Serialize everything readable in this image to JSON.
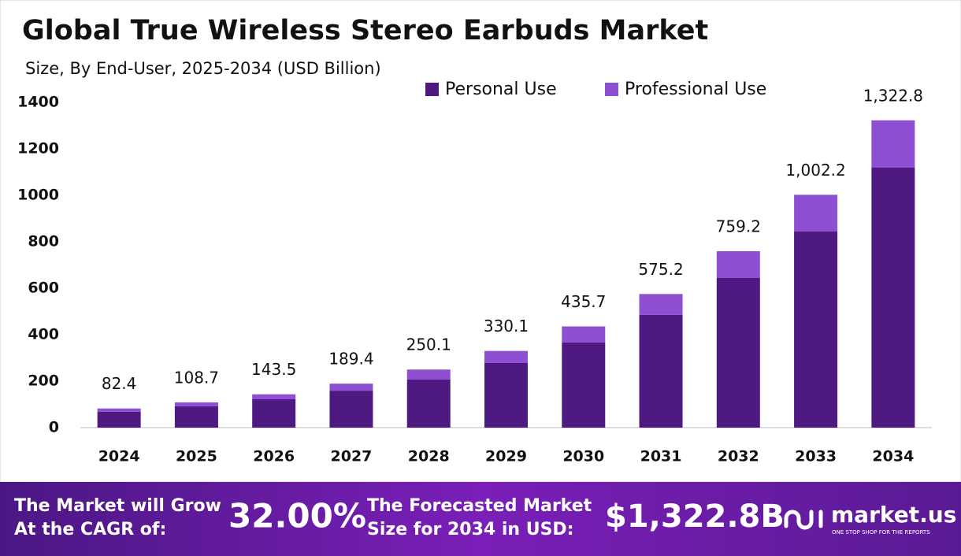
{
  "chart_data": {
    "type": "stacked-bar",
    "title": "Global True Wireless Stereo Earbuds Market",
    "subtitle": "Size, By End-User, 2025-2034 (USD Billion)",
    "categories": [
      "2024",
      "2025",
      "2026",
      "2027",
      "2028",
      "2029",
      "2030",
      "2031",
      "2032",
      "2033",
      "2034"
    ],
    "series": [
      {
        "name": "Personal Use",
        "color": "#4e1a82",
        "values": [
          68,
          92,
          122,
          159,
          207,
          278,
          366,
          485,
          644,
          844,
          1120
        ]
      },
      {
        "name": "Professional Use",
        "color": "#8e4fd3",
        "values": [
          14.4,
          16.7,
          21.5,
          30.4,
          43.1,
          52.1,
          69.7,
          90.2,
          115.2,
          158.2,
          202.8
        ]
      }
    ],
    "totals": {
      "values": [
        82.4,
        108.7,
        143.5,
        189.4,
        250.1,
        330.1,
        435.7,
        575.2,
        759.2,
        1002.2,
        1322.8
      ],
      "value_labels": [
        "82.4",
        "108.7",
        "143.5",
        "189.4",
        "250.1",
        "330.1",
        "435.7",
        "575.2",
        "759.2",
        "1,002.2",
        "1,322.8"
      ]
    },
    "ylim": [
      0,
      1400
    ],
    "yticks": [
      0,
      200,
      400,
      600,
      800,
      1000,
      1200,
      1400
    ],
    "legend": "top-right",
    "grid": false
  },
  "footer": {
    "cagr_label": [
      "The Market will Grow",
      "At the CAGR of:"
    ],
    "cagr": "32.00%",
    "forecast_label": [
      "The Forecasted Market",
      "Size for 2034 in USD:"
    ],
    "forecast": "$1,322.8B",
    "brand": "market.us",
    "tagline": "ONE STOP SHOP FOR THE REPORTS"
  }
}
